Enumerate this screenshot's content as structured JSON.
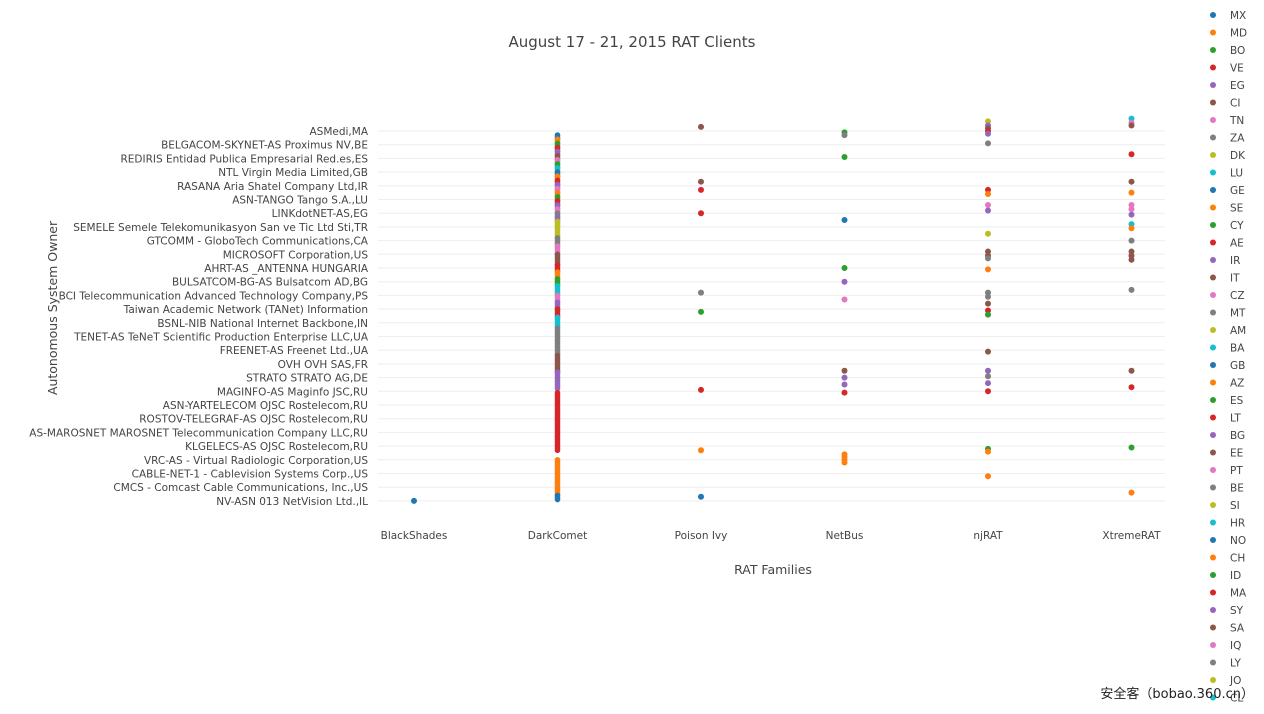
{
  "chart_data": {
    "type": "scatter",
    "title": "August 17 - 21, 2015 RAT Clients",
    "xlabel": "RAT Families",
    "ylabel": "Autonomous System Owner",
    "grid": true,
    "legend_placement": "right",
    "categories": [
      "BlackShades",
      "DarkComet",
      "Poison Ivy",
      "NetBus",
      "njRAT",
      "XtremeRAT"
    ],
    "y_labels": [
      "ASMedi,MA",
      "BELGACOM-SKYNET-AS Proximus NV,BE",
      "REDIRIS Entidad Publica Empresarial Red.es,ES",
      "NTL Virgin Media Limited,GB",
      "RASANA Aria Shatel Company Ltd,IR",
      "ASN-TANGO Tango S.A.,LU",
      "LINKdotNET-AS,EG",
      "SEMELE Semele Telekomunikasyon San ve Tic Ltd Sti,TR",
      "GTCOMM - GloboTech Communications,CA",
      "MICROSOFT Corporation,US",
      "AHRT-AS _ANTENNA HUNGARIA",
      "BULSATCOM-BG-AS Bulsatcom AD,BG",
      "BCI Telecommunication Advanced Technology Company,PS",
      "Taiwan Academic Network (TANet) Information",
      "BSNL-NIB National Internet Backbone,IN",
      "TENET-AS TeNeT Scientific Production Enterprise LLC,UA",
      "FREENET-AS Freenet Ltd.,UA",
      "OVH OVH SAS,FR",
      "STRATO STRATO AG,DE",
      "MAGINFO-AS Maginfo JSC,RU",
      "ASN-YARTELECOM OJSC Rostelecom,RU",
      "ROSTOV-TELEGRAF-AS OJSC Rostelecom,RU",
      "AS-MAROSNET MAROSNET Telecommunication Company LLC,RU",
      "KLGELECS-AS OJSC Rostelecom,RU",
      "VRC-AS - Virtual Radiologic Corporation,US",
      "CABLE-NET-1 - Cablevision Systems Corp.,US",
      "CMCS - Comcast Cable Communications, Inc.,US",
      "NV-ASN 013 NetVision Ltd.,IL"
    ],
    "legend": [
      {
        "name": "MX",
        "color": "#1f77b4"
      },
      {
        "name": "MD",
        "color": "#ff7f0e"
      },
      {
        "name": "BO",
        "color": "#2ca02c"
      },
      {
        "name": "VE",
        "color": "#d62728"
      },
      {
        "name": "EG",
        "color": "#9467bd"
      },
      {
        "name": "CI",
        "color": "#8c564b"
      },
      {
        "name": "TN",
        "color": "#e377c2"
      },
      {
        "name": "ZA",
        "color": "#7f7f7f"
      },
      {
        "name": "DK",
        "color": "#bcbd22"
      },
      {
        "name": "LU",
        "color": "#17becf"
      },
      {
        "name": "GE",
        "color": "#1f77b4"
      },
      {
        "name": "SE",
        "color": "#ff7f0e"
      },
      {
        "name": "CY",
        "color": "#2ca02c"
      },
      {
        "name": "AE",
        "color": "#d62728"
      },
      {
        "name": "IR",
        "color": "#9467bd"
      },
      {
        "name": "IT",
        "color": "#8c564b"
      },
      {
        "name": "CZ",
        "color": "#e377c2"
      },
      {
        "name": "MT",
        "color": "#7f7f7f"
      },
      {
        "name": "AM",
        "color": "#bcbd22"
      },
      {
        "name": "BA",
        "color": "#17becf"
      },
      {
        "name": "GB",
        "color": "#1f77b4"
      },
      {
        "name": "AZ",
        "color": "#ff7f0e"
      },
      {
        "name": "ES",
        "color": "#2ca02c"
      },
      {
        "name": "LT",
        "color": "#d62728"
      },
      {
        "name": "BG",
        "color": "#9467bd"
      },
      {
        "name": "EE",
        "color": "#8c564b"
      },
      {
        "name": "PT",
        "color": "#e377c2"
      },
      {
        "name": "BE",
        "color": "#7f7f7f"
      },
      {
        "name": "SI",
        "color": "#bcbd22"
      },
      {
        "name": "HR",
        "color": "#17becf"
      },
      {
        "name": "NO",
        "color": "#1f77b4"
      },
      {
        "name": "CH",
        "color": "#ff7f0e"
      },
      {
        "name": "ID",
        "color": "#2ca02c"
      },
      {
        "name": "MA",
        "color": "#d62728"
      },
      {
        "name": "SY",
        "color": "#9467bd"
      },
      {
        "name": "SA",
        "color": "#8c564b"
      },
      {
        "name": "IQ",
        "color": "#e377c2"
      },
      {
        "name": "LY",
        "color": "#7f7f7f"
      },
      {
        "name": "JO",
        "color": "#bcbd22"
      },
      {
        "name": "CL",
        "color": "#17becf"
      }
    ],
    "points": [
      {
        "x": "BlackShades",
        "y": 27.0,
        "color": "#1f77b4"
      },
      {
        "x": "Poison Ivy",
        "y": -0.3,
        "color": "#8c564b"
      },
      {
        "x": "Poison Ivy",
        "y": 3.7,
        "color": "#8c564b"
      },
      {
        "x": "Poison Ivy",
        "y": 4.3,
        "color": "#d62728"
      },
      {
        "x": "Poison Ivy",
        "y": 6.0,
        "color": "#d62728"
      },
      {
        "x": "Poison Ivy",
        "y": 11.8,
        "color": "#7f7f7f"
      },
      {
        "x": "Poison Ivy",
        "y": 13.2,
        "color": "#2ca02c"
      },
      {
        "x": "Poison Ivy",
        "y": 18.9,
        "color": "#d62728"
      },
      {
        "x": "Poison Ivy",
        "y": 23.3,
        "color": "#ff7f0e"
      },
      {
        "x": "Poison Ivy",
        "y": 26.7,
        "color": "#1f77b4"
      },
      {
        "x": "NetBus",
        "y": 0.1,
        "color": "#2ca02c"
      },
      {
        "x": "NetBus",
        "y": 0.3,
        "color": "#7f7f7f"
      },
      {
        "x": "NetBus",
        "y": 1.9,
        "color": "#2ca02c"
      },
      {
        "x": "NetBus",
        "y": 6.5,
        "color": "#1f77b4"
      },
      {
        "x": "NetBus",
        "y": 10.0,
        "color": "#2ca02c"
      },
      {
        "x": "NetBus",
        "y": 11.0,
        "color": "#9467bd"
      },
      {
        "x": "NetBus",
        "y": 12.3,
        "color": "#e377c2"
      },
      {
        "x": "NetBus",
        "y": 17.5,
        "color": "#8c564b"
      },
      {
        "x": "NetBus",
        "y": 18.0,
        "color": "#9467bd"
      },
      {
        "x": "NetBus",
        "y": 18.5,
        "color": "#9467bd"
      },
      {
        "x": "NetBus",
        "y": 19.1,
        "color": "#d62728"
      },
      {
        "x": "NetBus",
        "y": 23.6,
        "color": "#ff7f0e"
      },
      {
        "x": "NetBus",
        "y": 23.8,
        "color": "#ff7f0e"
      },
      {
        "x": "NetBus",
        "y": 24.0,
        "color": "#ff7f0e"
      },
      {
        "x": "NetBus",
        "y": 24.2,
        "color": "#ff7f0e"
      },
      {
        "x": "njRAT",
        "y": -0.7,
        "color": "#bcbd22"
      },
      {
        "x": "njRAT",
        "y": -0.4,
        "color": "#9467bd"
      },
      {
        "x": "njRAT",
        "y": -0.2,
        "color": "#8c564b"
      },
      {
        "x": "njRAT",
        "y": 0.0,
        "color": "#d62728"
      },
      {
        "x": "njRAT",
        "y": 0.2,
        "color": "#9467bd"
      },
      {
        "x": "njRAT",
        "y": 0.9,
        "color": "#7f7f7f"
      },
      {
        "x": "njRAT",
        "y": 4.3,
        "color": "#d62728"
      },
      {
        "x": "njRAT",
        "y": 4.6,
        "color": "#ff7f0e"
      },
      {
        "x": "njRAT",
        "y": 5.4,
        "color": "#e377c2"
      },
      {
        "x": "njRAT",
        "y": 5.8,
        "color": "#9467bd"
      },
      {
        "x": "njRAT",
        "y": 7.5,
        "color": "#bcbd22"
      },
      {
        "x": "njRAT",
        "y": 8.8,
        "color": "#8c564b"
      },
      {
        "x": "njRAT",
        "y": 9.1,
        "color": "#8c564b"
      },
      {
        "x": "njRAT",
        "y": 9.3,
        "color": "#7f7f7f"
      },
      {
        "x": "njRAT",
        "y": 10.1,
        "color": "#ff7f0e"
      },
      {
        "x": "njRAT",
        "y": 11.8,
        "color": "#7f7f7f"
      },
      {
        "x": "njRAT",
        "y": 12.1,
        "color": "#7f7f7f"
      },
      {
        "x": "njRAT",
        "y": 12.6,
        "color": "#8c564b"
      },
      {
        "x": "njRAT",
        "y": 13.1,
        "color": "#d62728"
      },
      {
        "x": "njRAT",
        "y": 13.4,
        "color": "#2ca02c"
      },
      {
        "x": "njRAT",
        "y": 16.1,
        "color": "#8c564b"
      },
      {
        "x": "njRAT",
        "y": 17.5,
        "color": "#9467bd"
      },
      {
        "x": "njRAT",
        "y": 17.9,
        "color": "#7f7f7f"
      },
      {
        "x": "njRAT",
        "y": 18.4,
        "color": "#9467bd"
      },
      {
        "x": "njRAT",
        "y": 19.0,
        "color": "#d62728"
      },
      {
        "x": "njRAT",
        "y": 23.2,
        "color": "#2ca02c"
      },
      {
        "x": "njRAT",
        "y": 23.4,
        "color": "#ff7f0e"
      },
      {
        "x": "njRAT",
        "y": 25.2,
        "color": "#ff7f0e"
      },
      {
        "x": "XtremeRAT",
        "y": -0.9,
        "color": "#17becf"
      },
      {
        "x": "XtremeRAT",
        "y": -0.6,
        "color": "#e377c2"
      },
      {
        "x": "XtremeRAT",
        "y": -0.4,
        "color": "#8c564b"
      },
      {
        "x": "XtremeRAT",
        "y": 1.7,
        "color": "#d62728"
      },
      {
        "x": "XtremeRAT",
        "y": 3.7,
        "color": "#8c564b"
      },
      {
        "x": "XtremeRAT",
        "y": 4.5,
        "color": "#ff7f0e"
      },
      {
        "x": "XtremeRAT",
        "y": 5.4,
        "color": "#e377c2"
      },
      {
        "x": "XtremeRAT",
        "y": 5.7,
        "color": "#e377c2"
      },
      {
        "x": "XtremeRAT",
        "y": 6.1,
        "color": "#9467bd"
      },
      {
        "x": "XtremeRAT",
        "y": 6.8,
        "color": "#17becf"
      },
      {
        "x": "XtremeRAT",
        "y": 7.1,
        "color": "#ff7f0e"
      },
      {
        "x": "XtremeRAT",
        "y": 8.0,
        "color": "#7f7f7f"
      },
      {
        "x": "XtremeRAT",
        "y": 8.8,
        "color": "#8c564b"
      },
      {
        "x": "XtremeRAT",
        "y": 9.1,
        "color": "#8c564b"
      },
      {
        "x": "XtremeRAT",
        "y": 9.4,
        "color": "#8c564b"
      },
      {
        "x": "XtremeRAT",
        "y": 11.6,
        "color": "#7f7f7f"
      },
      {
        "x": "XtremeRAT",
        "y": 17.5,
        "color": "#8c564b"
      },
      {
        "x": "XtremeRAT",
        "y": 18.7,
        "color": "#d62728"
      },
      {
        "x": "XtremeRAT",
        "y": 23.1,
        "color": "#2ca02c"
      },
      {
        "x": "XtremeRAT",
        "y": 26.4,
        "color": "#ff7f0e"
      }
    ],
    "darkcomet_strip": [
      {
        "from": 0.3,
        "to": 0.6,
        "color": "#1f77b4"
      },
      {
        "from": 0.6,
        "to": 0.9,
        "color": "#ff7f0e"
      },
      {
        "from": 0.9,
        "to": 1.2,
        "color": "#2ca02c"
      },
      {
        "from": 1.2,
        "to": 1.5,
        "color": "#d62728"
      },
      {
        "from": 1.5,
        "to": 1.8,
        "color": "#9467bd"
      },
      {
        "from": 1.8,
        "to": 2.1,
        "color": "#8c564b"
      },
      {
        "from": 2.1,
        "to": 2.4,
        "color": "#e377c2"
      },
      {
        "from": 2.4,
        "to": 2.7,
        "color": "#2ca02c"
      },
      {
        "from": 2.7,
        "to": 3.0,
        "color": "#17becf"
      },
      {
        "from": 3.0,
        "to": 3.3,
        "color": "#1f77b4"
      },
      {
        "from": 3.3,
        "to": 3.6,
        "color": "#ff7f0e"
      },
      {
        "from": 3.6,
        "to": 3.9,
        "color": "#d62728"
      },
      {
        "from": 3.9,
        "to": 4.2,
        "color": "#9467bd"
      },
      {
        "from": 4.2,
        "to": 4.5,
        "color": "#e377c2"
      },
      {
        "from": 4.5,
        "to": 4.8,
        "color": "#ff7f0e"
      },
      {
        "from": 4.8,
        "to": 5.1,
        "color": "#2ca02c"
      },
      {
        "from": 5.1,
        "to": 5.4,
        "color": "#d62728"
      },
      {
        "from": 5.4,
        "to": 5.7,
        "color": "#9467bd"
      },
      {
        "from": 5.7,
        "to": 6.0,
        "color": "#e377c2"
      },
      {
        "from": 6.0,
        "to": 6.3,
        "color": "#7f7f7f"
      },
      {
        "from": 6.3,
        "to": 6.6,
        "color": "#9467bd"
      },
      {
        "from": 6.6,
        "to": 6.9,
        "color": "#bcbd22"
      },
      {
        "from": 6.9,
        "to": 7.8,
        "color": "#bcbd22"
      },
      {
        "from": 7.8,
        "to": 8.4,
        "color": "#7f7f7f"
      },
      {
        "from": 8.4,
        "to": 9.0,
        "color": "#e377c2"
      },
      {
        "from": 9.0,
        "to": 9.8,
        "color": "#8c564b"
      },
      {
        "from": 9.8,
        "to": 10.3,
        "color": "#d62728"
      },
      {
        "from": 10.3,
        "to": 10.8,
        "color": "#ff7f0e"
      },
      {
        "from": 10.8,
        "to": 11.3,
        "color": "#2ca02c"
      },
      {
        "from": 11.3,
        "to": 12.0,
        "color": "#17becf"
      },
      {
        "from": 12.0,
        "to": 12.5,
        "color": "#e377c2"
      },
      {
        "from": 12.5,
        "to": 13.0,
        "color": "#9467bd"
      },
      {
        "from": 13.0,
        "to": 13.6,
        "color": "#d62728"
      },
      {
        "from": 13.6,
        "to": 14.4,
        "color": "#17becf"
      },
      {
        "from": 14.4,
        "to": 15.4,
        "color": "#7f7f7f"
      },
      {
        "from": 15.4,
        "to": 16.4,
        "color": "#7f7f7f"
      },
      {
        "from": 16.4,
        "to": 17.6,
        "color": "#8c564b"
      },
      {
        "from": 17.6,
        "to": 18.8,
        "color": "#9467bd"
      },
      {
        "from": 19.1,
        "to": 23.3,
        "color": "#d62728"
      },
      {
        "from": 24.0,
        "to": 26.6,
        "color": "#ff7f0e"
      },
      {
        "from": 26.6,
        "to": 26.9,
        "color": "#1f77b4"
      }
    ]
  },
  "watermark": "安全客（bobao.360.cn）"
}
